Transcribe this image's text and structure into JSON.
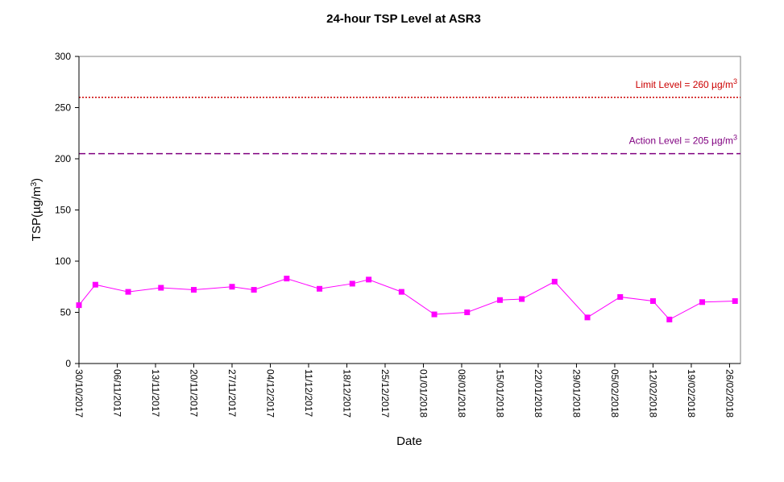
{
  "chart_data": {
    "type": "line",
    "title": "24-hour TSP Level at ASR3",
    "xlabel": "Date",
    "ylabel": "TSP(µg/m3)",
    "ylim": [
      0,
      300
    ],
    "yticks": [
      0,
      50,
      100,
      150,
      200,
      250,
      300
    ],
    "xlim": [
      "2017-10-30",
      "2018-02-28"
    ],
    "xticks": [
      "30/10/2017",
      "06/11/2017",
      "13/11/2017",
      "20/11/2017",
      "27/11/2017",
      "04/12/2017",
      "11/12/2017",
      "18/12/2017",
      "25/12/2017",
      "01/01/2018",
      "08/01/2018",
      "15/01/2018",
      "22/01/2018",
      "29/01/2018",
      "05/02/2018",
      "12/02/2018",
      "19/02/2018",
      "26/02/2018"
    ],
    "grid": false,
    "series": [
      {
        "color": "#ff00ff",
        "marker": "square",
        "points": [
          {
            "x": "2017-10-30",
            "y": 57
          },
          {
            "x": "2017-11-02",
            "y": 77
          },
          {
            "x": "2017-11-08",
            "y": 70
          },
          {
            "x": "2017-11-14",
            "y": 74
          },
          {
            "x": "2017-11-20",
            "y": 72
          },
          {
            "x": "2017-11-27",
            "y": 75
          },
          {
            "x": "2017-12-01",
            "y": 72
          },
          {
            "x": "2017-12-07",
            "y": 83
          },
          {
            "x": "2017-12-13",
            "y": 73
          },
          {
            "x": "2017-12-19",
            "y": 78
          },
          {
            "x": "2017-12-22",
            "y": 82
          },
          {
            "x": "2017-12-28",
            "y": 70
          },
          {
            "x": "2018-01-03",
            "y": 48
          },
          {
            "x": "2018-01-09",
            "y": 50
          },
          {
            "x": "2018-01-15",
            "y": 62
          },
          {
            "x": "2018-01-19",
            "y": 63
          },
          {
            "x": "2018-01-25",
            "y": 80
          },
          {
            "x": "2018-01-31",
            "y": 45
          },
          {
            "x": "2018-02-06",
            "y": 65
          },
          {
            "x": "2018-02-12",
            "y": 61
          },
          {
            "x": "2018-02-15",
            "y": 43
          },
          {
            "x": "2018-02-21",
            "y": 60
          },
          {
            "x": "2018-02-27",
            "y": 61
          }
        ]
      }
    ],
    "reference_lines": [
      {
        "label": "Limit Level = 260 µg/m3",
        "label_main": "Limit Level = 260 µg/m",
        "label_sup": "3",
        "y": 260,
        "color": "#cc0000",
        "style": "dotted"
      },
      {
        "label": "Action Level = 205 µg/m3",
        "label_main": "Action Level = 205 µg/m",
        "label_sup": "3",
        "y": 205,
        "color": "#800080",
        "style": "dashed"
      }
    ]
  }
}
